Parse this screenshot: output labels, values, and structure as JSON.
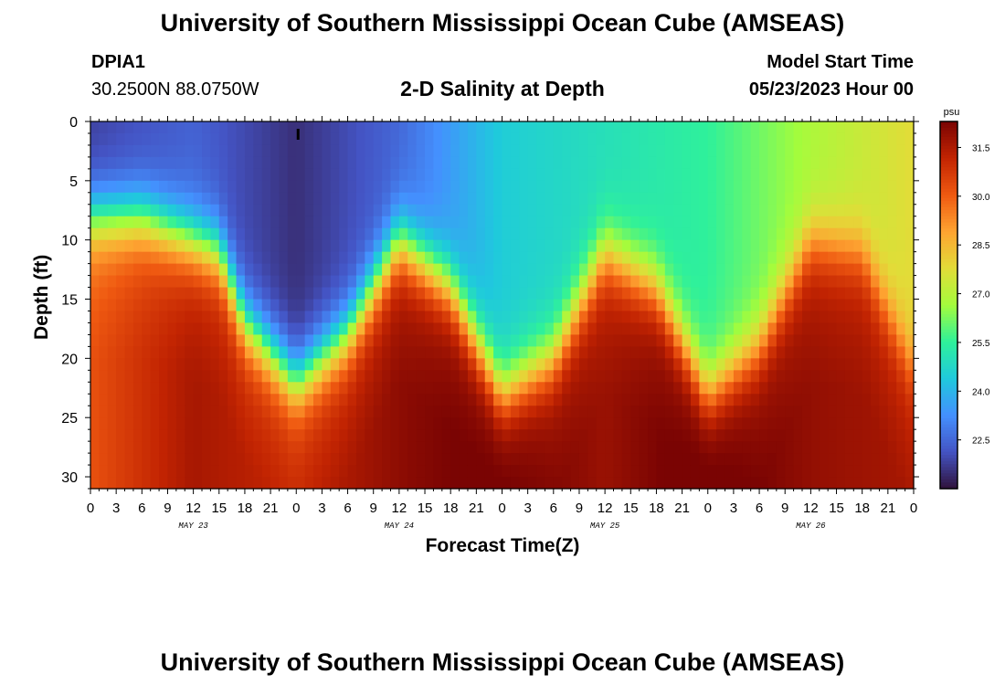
{
  "header": {
    "title_top": "University of Southern Mississippi Ocean Cube (AMSEAS)",
    "station_id": "DPIA1",
    "station_coords": "30.2500N  88.0750W",
    "plot_title": "2-D Salinity at Depth",
    "model_start_label": "Model Start Time",
    "model_start_value": "05/23/2023 Hour 00",
    "title_bottom": "University of Southern Mississippi Ocean Cube (AMSEAS)"
  },
  "chart_data": {
    "type": "heatmap",
    "title": "2-D Salinity at Depth",
    "xlabel": "Forecast Time(Z)",
    "ylabel": "Depth (ft)",
    "x_range_hours": [
      0,
      96
    ],
    "y_range_ft": [
      0,
      31
    ],
    "y_inverted": true,
    "x_tick_labels": [
      "0",
      "3",
      "6",
      "9",
      "12",
      "15",
      "18",
      "21",
      "0",
      "3",
      "6",
      "9",
      "12",
      "15",
      "18",
      "21",
      "0",
      "3",
      "6",
      "9",
      "12",
      "15",
      "18",
      "21",
      "0",
      "3",
      "6",
      "9",
      "12",
      "15",
      "18",
      "21",
      "0"
    ],
    "day_labels": [
      {
        "hour": 12,
        "label": "MAY 23"
      },
      {
        "hour": 36,
        "label": "MAY 24"
      },
      {
        "hour": 60,
        "label": "MAY 25"
      },
      {
        "hour": 84,
        "label": "MAY 26"
      }
    ],
    "y_ticks": [
      0,
      5,
      10,
      15,
      20,
      25,
      30
    ],
    "colorbar": {
      "units": "psu",
      "range": [
        21.0,
        32.3
      ],
      "tick_labels": [
        "31.5",
        "30.0",
        "28.5",
        "27.0",
        "25.5",
        "24.0",
        "22.5"
      ],
      "tick_values": [
        31.5,
        30.0,
        28.5,
        27.0,
        25.5,
        24.0,
        22.5
      ],
      "colors": [
        "#30123b",
        "#4454c4",
        "#4490fe",
        "#1fc9dd",
        "#2ff19a",
        "#a4fc3c",
        "#e2dc38",
        "#fea331",
        "#ef5911",
        "#c22402",
        "#7a0403"
      ]
    },
    "field_description_points": {
      "halocline_depth_ft": [
        [
          0,
          8
        ],
        [
          6,
          8
        ],
        [
          12,
          10
        ],
        [
          15,
          11
        ],
        [
          18,
          17
        ],
        [
          24,
          22
        ],
        [
          30,
          18
        ],
        [
          36,
          10
        ],
        [
          42,
          14
        ],
        [
          48,
          23
        ],
        [
          54,
          20
        ],
        [
          60,
          11
        ],
        [
          66,
          14
        ],
        [
          72,
          23
        ],
        [
          78,
          19
        ],
        [
          84,
          10
        ],
        [
          90,
          11
        ],
        [
          96,
          21
        ]
      ],
      "surface_salinity_psu": [
        [
          0,
          21.8
        ],
        [
          12,
          22.4
        ],
        [
          24,
          21.5
        ],
        [
          36,
          22.5
        ],
        [
          48,
          24.5
        ],
        [
          60,
          25.0
        ],
        [
          72,
          25.5
        ],
        [
          84,
          26.8
        ],
        [
          96,
          27.8
        ]
      ],
      "bottom_salinity_psu": [
        [
          0,
          29.6
        ],
        [
          12,
          31.0
        ],
        [
          24,
          30.5
        ],
        [
          36,
          31.4
        ],
        [
          48,
          32.0
        ],
        [
          60,
          31.2
        ],
        [
          72,
          32.1
        ],
        [
          84,
          31.3
        ],
        [
          96,
          31.0
        ]
      ]
    }
  }
}
